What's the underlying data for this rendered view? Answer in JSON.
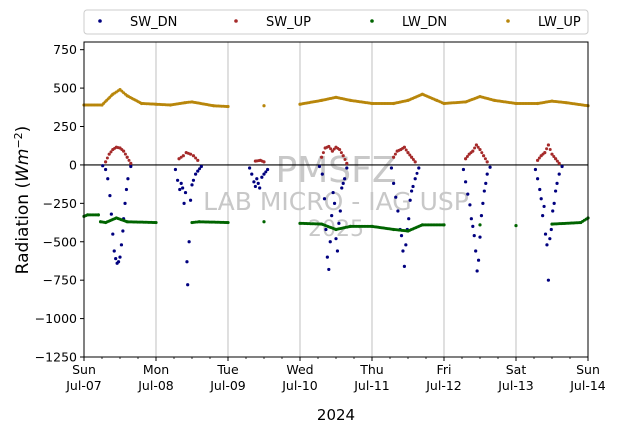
{
  "chart_data": {
    "type": "scatter",
    "title": "",
    "xlabel": "2024",
    "ylabel_prefix": "Radiation (",
    "ylabel_unit_main": "Wm",
    "ylabel_unit_exp": "−2",
    "ylabel_suffix": ")",
    "ylim": [
      -1250,
      800
    ],
    "xlim": [
      0,
      7
    ],
    "x_units": "days since Jul-07 00:00",
    "y_ticks": [
      {
        "value": 750,
        "label": "750"
      },
      {
        "value": 500,
        "label": "500"
      },
      {
        "value": 250,
        "label": "250"
      },
      {
        "value": 0,
        "label": "0"
      },
      {
        "value": -250,
        "label": "−250"
      },
      {
        "value": -500,
        "label": "−500"
      },
      {
        "value": -750,
        "label": "−750"
      },
      {
        "value": -1000,
        "label": "−1000"
      },
      {
        "value": -1250,
        "label": "−1250"
      }
    ],
    "x_ticks": [
      {
        "value": 0,
        "day": "Sun",
        "date": "Jul-07"
      },
      {
        "value": 1,
        "day": "Mon",
        "date": "Jul-08"
      },
      {
        "value": 2,
        "day": "Tue",
        "date": "Jul-09"
      },
      {
        "value": 3,
        "day": "Wed",
        "date": "Jul-10"
      },
      {
        "value": 4,
        "day": "Thu",
        "date": "Jul-11"
      },
      {
        "value": 5,
        "day": "Fri",
        "date": "Jul-12"
      },
      {
        "value": 6,
        "day": "Sat",
        "date": "Jul-13"
      },
      {
        "value": 7,
        "day": "Sun",
        "date": "Jul-14"
      }
    ],
    "grid_vertical": true,
    "zero_line": true,
    "legend": {
      "placement": "top, outside plot"
    },
    "watermark": [
      "PMSFZ",
      "LAB MICRO - IAG USP",
      "2025"
    ],
    "series": [
      {
        "name": "SW_DN",
        "color": "#00007f",
        "points": [
          [
            0.26,
            -5
          ],
          [
            0.3,
            -30
          ],
          [
            0.33,
            -90
          ],
          [
            0.36,
            -200
          ],
          [
            0.38,
            -320
          ],
          [
            0.4,
            -450
          ],
          [
            0.42,
            -560
          ],
          [
            0.44,
            -610
          ],
          [
            0.46,
            -640
          ],
          [
            0.48,
            -630
          ],
          [
            0.5,
            -600
          ],
          [
            0.52,
            -520
          ],
          [
            0.54,
            -430
          ],
          [
            0.55,
            -350
          ],
          [
            0.57,
            -250
          ],
          [
            0.59,
            -160
          ],
          [
            0.61,
            -90
          ],
          [
            0.65,
            -10
          ],
          [
            1.27,
            -30
          ],
          [
            1.3,
            -100
          ],
          [
            1.33,
            -160
          ],
          [
            1.35,
            -120
          ],
          [
            1.37,
            -150
          ],
          [
            1.39,
            -250
          ],
          [
            1.41,
            -180
          ],
          [
            1.43,
            -630
          ],
          [
            1.44,
            -780
          ],
          [
            1.46,
            -500
          ],
          [
            1.48,
            -230
          ],
          [
            1.5,
            -130
          ],
          [
            1.52,
            -100
          ],
          [
            1.55,
            -60
          ],
          [
            1.58,
            -40
          ],
          [
            1.63,
            -10
          ],
          [
            2.3,
            -20
          ],
          [
            2.33,
            -60
          ],
          [
            2.36,
            -110
          ],
          [
            2.38,
            -140
          ],
          [
            2.4,
            -90
          ],
          [
            2.42,
            -120
          ],
          [
            2.44,
            -150
          ],
          [
            2.47,
            -80
          ],
          [
            2.5,
            -60
          ],
          [
            2.55,
            -30
          ],
          [
            3.27,
            -10
          ],
          [
            3.31,
            -60
          ],
          [
            3.34,
            -220
          ],
          [
            3.36,
            -420
          ],
          [
            3.38,
            -600
          ],
          [
            3.4,
            -680
          ],
          [
            3.42,
            -500
          ],
          [
            3.44,
            -330
          ],
          [
            3.46,
            -180
          ],
          [
            3.48,
            -250
          ],
          [
            3.5,
            -480
          ],
          [
            3.52,
            -560
          ],
          [
            3.54,
            -380
          ],
          [
            3.56,
            -300
          ],
          [
            3.58,
            -150
          ],
          [
            3.6,
            -120
          ],
          [
            3.62,
            -90
          ],
          [
            3.65,
            -20
          ],
          [
            4.27,
            -20
          ],
          [
            4.3,
            -120
          ],
          [
            4.33,
            -210
          ],
          [
            4.36,
            -300
          ],
          [
            4.39,
            -420
          ],
          [
            4.41,
            -460
          ],
          [
            4.43,
            -560
          ],
          [
            4.45,
            -660
          ],
          [
            4.47,
            -520
          ],
          [
            4.49,
            -420
          ],
          [
            4.51,
            -350
          ],
          [
            4.53,
            -230
          ],
          [
            4.55,
            -170
          ],
          [
            4.57,
            -140
          ],
          [
            4.6,
            -90
          ],
          [
            4.65,
            -20
          ],
          [
            5.27,
            -30
          ],
          [
            5.3,
            -110
          ],
          [
            5.33,
            -190
          ],
          [
            5.36,
            -260
          ],
          [
            5.38,
            -350
          ],
          [
            5.4,
            -400
          ],
          [
            5.42,
            -460
          ],
          [
            5.44,
            -560
          ],
          [
            5.46,
            -690
          ],
          [
            5.48,
            -620
          ],
          [
            5.5,
            -470
          ],
          [
            5.52,
            -330
          ],
          [
            5.54,
            -250
          ],
          [
            5.56,
            -170
          ],
          [
            5.58,
            -120
          ],
          [
            5.6,
            -60
          ],
          [
            5.64,
            -15
          ],
          [
            6.27,
            -30
          ],
          [
            6.3,
            -90
          ],
          [
            6.33,
            -160
          ],
          [
            6.35,
            -220
          ],
          [
            6.37,
            -330
          ],
          [
            6.39,
            -270
          ],
          [
            6.41,
            -450
          ],
          [
            6.43,
            -520
          ],
          [
            6.45,
            -750
          ],
          [
            6.47,
            -480
          ],
          [
            6.49,
            -420
          ],
          [
            6.51,
            -300
          ],
          [
            6.53,
            -250
          ],
          [
            6.55,
            -170
          ],
          [
            6.57,
            -120
          ],
          [
            6.6,
            -60
          ],
          [
            6.64,
            -10
          ]
        ]
      },
      {
        "name": "SW_UP",
        "color": "#a52a2a",
        "points": [
          [
            0.3,
            20
          ],
          [
            0.35,
            70
          ],
          [
            0.4,
            100
          ],
          [
            0.45,
            115
          ],
          [
            0.5,
            110
          ],
          [
            0.55,
            90
          ],
          [
            0.6,
            50
          ],
          [
            0.65,
            10
          ],
          [
            1.32,
            40
          ],
          [
            1.38,
            60
          ],
          [
            1.42,
            80
          ],
          [
            1.48,
            70
          ],
          [
            1.52,
            60
          ],
          [
            1.58,
            30
          ],
          [
            2.38,
            25
          ],
          [
            2.45,
            30
          ],
          [
            2.5,
            20
          ],
          [
            3.3,
            50
          ],
          [
            3.35,
            110
          ],
          [
            3.4,
            120
          ],
          [
            3.45,
            90
          ],
          [
            3.5,
            115
          ],
          [
            3.55,
            100
          ],
          [
            3.6,
            60
          ],
          [
            3.65,
            10
          ],
          [
            4.3,
            50
          ],
          [
            4.35,
            90
          ],
          [
            4.4,
            100
          ],
          [
            4.45,
            115
          ],
          [
            4.5,
            80
          ],
          [
            4.55,
            50
          ],
          [
            4.6,
            20
          ],
          [
            5.3,
            40
          ],
          [
            5.35,
            70
          ],
          [
            5.4,
            90
          ],
          [
            5.45,
            130
          ],
          [
            5.5,
            100
          ],
          [
            5.55,
            60
          ],
          [
            5.6,
            20
          ],
          [
            6.3,
            30
          ],
          [
            6.35,
            60
          ],
          [
            6.4,
            80
          ],
          [
            6.45,
            130
          ],
          [
            6.5,
            70
          ],
          [
            6.55,
            40
          ],
          [
            6.6,
            10
          ]
        ]
      },
      {
        "name": "LW_DN",
        "color": "#006400",
        "points": [
          [
            0,
            -335
          ],
          [
            0.05,
            -325
          ],
          [
            0.2,
            -325
          ],
          [
            0.23,
            -370
          ],
          [
            0.3,
            -375
          ],
          [
            0.45,
            -345
          ],
          [
            0.6,
            -370
          ],
          [
            1,
            -375
          ],
          [
            1.5,
            -375
          ],
          [
            1.6,
            -370
          ],
          [
            2,
            -375
          ],
          [
            2.5,
            -370
          ],
          [
            3,
            -380
          ],
          [
            3.3,
            -385
          ],
          [
            3.5,
            -420
          ],
          [
            3.7,
            -400
          ],
          [
            4,
            -400
          ],
          [
            4.3,
            -420
          ],
          [
            4.5,
            -430
          ],
          [
            4.7,
            -390
          ],
          [
            5,
            -390
          ],
          [
            5.5,
            -390
          ],
          [
            6,
            -395
          ],
          [
            6.5,
            -385
          ],
          [
            6.9,
            -375
          ],
          [
            7,
            -345
          ]
        ]
      },
      {
        "name": "LW_UP",
        "color": "#b8860b",
        "points": [
          [
            0,
            390
          ],
          [
            0.25,
            390
          ],
          [
            0.4,
            460
          ],
          [
            0.5,
            490
          ],
          [
            0.6,
            450
          ],
          [
            0.8,
            400
          ],
          [
            1,
            395
          ],
          [
            1.2,
            390
          ],
          [
            1.4,
            405
          ],
          [
            1.5,
            410
          ],
          [
            1.8,
            385
          ],
          [
            2,
            380
          ],
          [
            2.5,
            385
          ],
          [
            3,
            395
          ],
          [
            3.3,
            420
          ],
          [
            3.5,
            440
          ],
          [
            3.7,
            420
          ],
          [
            4,
            400
          ],
          [
            4.3,
            400
          ],
          [
            4.5,
            420
          ],
          [
            4.7,
            460
          ],
          [
            4.9,
            420
          ],
          [
            5,
            400
          ],
          [
            5.3,
            410
          ],
          [
            5.5,
            445
          ],
          [
            5.7,
            420
          ],
          [
            6,
            400
          ],
          [
            6.3,
            400
          ],
          [
            6.5,
            415
          ],
          [
            6.7,
            405
          ],
          [
            7,
            385
          ]
        ]
      }
    ]
  }
}
